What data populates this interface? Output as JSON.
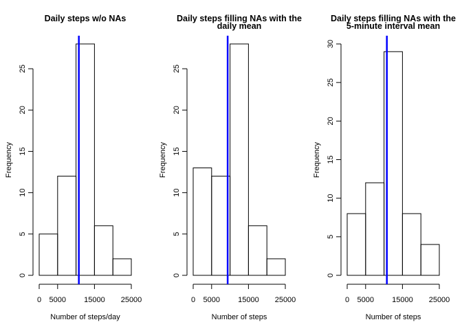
{
  "chart_data": [
    {
      "type": "bar",
      "title": [
        "Daily steps w/o NAs"
      ],
      "xlabel": "Number of steps/day",
      "ylabel": "Frequency",
      "bins": [
        0,
        5000,
        10000,
        15000,
        20000,
        25000
      ],
      "counts": [
        5,
        12,
        28,
        6,
        2
      ],
      "xticks": [
        0,
        5000,
        15000,
        25000
      ],
      "xtick_labels": [
        "0",
        "5000",
        "15000",
        "25000"
      ],
      "yticks": [
        0,
        5,
        10,
        15,
        20,
        25
      ],
      "ylim": [
        0,
        28
      ],
      "mean_line": 10766,
      "mean_line_color": "#0000ff"
    },
    {
      "type": "bar",
      "title": [
        "Daily steps filling NAs with the",
        "daily mean"
      ],
      "xlabel": "Number of steps",
      "ylabel": "Frequency",
      "bins": [
        0,
        5000,
        10000,
        15000,
        20000,
        25000
      ],
      "counts": [
        13,
        12,
        28,
        6,
        2
      ],
      "xticks": [
        0,
        5000,
        15000,
        25000
      ],
      "xtick_labels": [
        "0",
        "5000",
        "15000",
        "25000"
      ],
      "yticks": [
        0,
        5,
        10,
        15,
        20,
        25
      ],
      "ylim": [
        0,
        28
      ],
      "mean_line": 9354,
      "mean_line_color": "#0000ff"
    },
    {
      "type": "bar",
      "title": [
        "Daily steps filling NAs with the",
        "5-minute interval mean"
      ],
      "xlabel": "Number of steps",
      "ylabel": "Frequency",
      "bins": [
        0,
        5000,
        10000,
        15000,
        20000,
        25000
      ],
      "counts": [
        8,
        12,
        29,
        8,
        4
      ],
      "xticks": [
        0,
        5000,
        15000,
        25000
      ],
      "xtick_labels": [
        "0",
        "5000",
        "15000",
        "25000"
      ],
      "yticks": [
        0,
        5,
        10,
        15,
        20,
        25,
        30
      ],
      "ylim": [
        0,
        30
      ],
      "mean_line": 10766,
      "mean_line_color": "#0000ff"
    }
  ]
}
